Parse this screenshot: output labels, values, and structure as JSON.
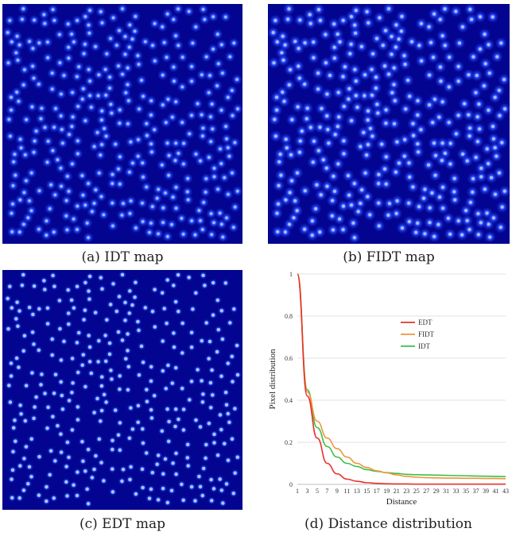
{
  "panels": {
    "idt": {
      "caption": "(a) IDT map",
      "colors": {
        "background": "#03048f",
        "blob": "#2a4cff",
        "core": "#9fc2ff"
      }
    },
    "fidt": {
      "caption": "(b) FIDT map",
      "colors": {
        "background": "#03048f",
        "blob": "#2a48ff",
        "core": "#a8c8ff"
      }
    },
    "edt": {
      "caption": "(c) EDT map",
      "colors": {
        "background": "#03048f",
        "blob": "#2f58ff",
        "core": "#b0d0ff"
      }
    },
    "distribution": {
      "caption": "(d) Distance distribution"
    }
  },
  "chart_data": {
    "type": "line",
    "title": "",
    "xlabel": "Distance",
    "ylabel": "Pixel distribution",
    "x": [
      1,
      3,
      5,
      7,
      9,
      11,
      13,
      15,
      17,
      19,
      21,
      23,
      25,
      27,
      29,
      31,
      33,
      35,
      37,
      39,
      41,
      43
    ],
    "ylim": [
      0,
      1
    ],
    "yticks": [
      "0",
      "0.2",
      "0.4",
      "0.6",
      "0.8",
      "1"
    ],
    "grid": true,
    "legend_position": "top-right",
    "series": [
      {
        "name": "EDT",
        "color": "#e8322a",
        "values": [
          1.0,
          0.42,
          0.22,
          0.1,
          0.05,
          0.025,
          0.015,
          0.008,
          0.005,
          0.003,
          0.002,
          0.002,
          0.001,
          0.001,
          0.001,
          0.001,
          0.001,
          0.001,
          0.001,
          0.001,
          0.001,
          0.001
        ]
      },
      {
        "name": "FIDT",
        "color": "#f0953a",
        "values": [
          1.0,
          0.44,
          0.3,
          0.22,
          0.17,
          0.13,
          0.1,
          0.08,
          0.065,
          0.055,
          0.045,
          0.038,
          0.034,
          0.032,
          0.031,
          0.03,
          0.03,
          0.029,
          0.029,
          0.028,
          0.028,
          0.027
        ]
      },
      {
        "name": "IDT",
        "color": "#3fbf4a",
        "values": [
          1.0,
          0.45,
          0.27,
          0.18,
          0.13,
          0.1,
          0.085,
          0.07,
          0.062,
          0.056,
          0.052,
          0.048,
          0.046,
          0.045,
          0.044,
          0.043,
          0.042,
          0.041,
          0.04,
          0.039,
          0.038,
          0.037
        ]
      }
    ]
  }
}
